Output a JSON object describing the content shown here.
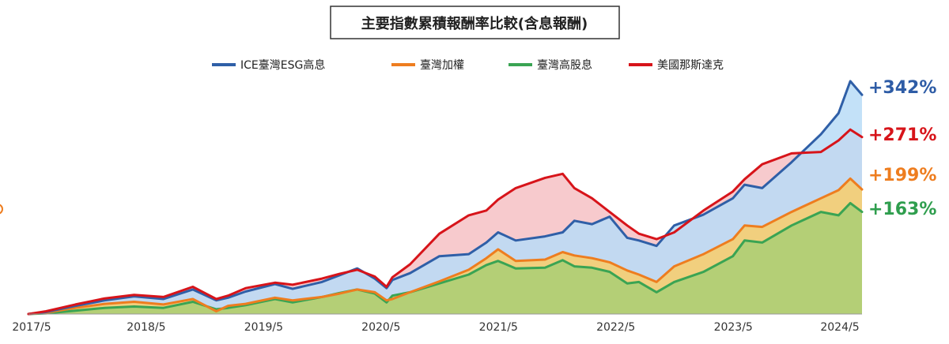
{
  "chart_data": {
    "type": "area",
    "title": "主要指數累積報酬率比較(含息報酬)",
    "xlabel": "",
    "ylabel": "",
    "x_ticks": [
      "2017/5",
      "2018/5",
      "2019/5",
      "2020/5",
      "2021/5",
      "2022/5",
      "2023/5",
      "2024/5"
    ],
    "x_range": [
      2017.35,
      2024.45
    ],
    "ylim": [
      0,
      350
    ],
    "grid": false,
    "legend": "top",
    "series": [
      {
        "name": "ICE臺灣ESG高息",
        "color": "#2f5fa7",
        "fill": "#b9dcf7",
        "end_label": "+342%",
        "points": [
          [
            2017.35,
            0
          ],
          [
            2017.5,
            3
          ],
          [
            2017.75,
            12
          ],
          [
            2018.0,
            20
          ],
          [
            2018.25,
            26
          ],
          [
            2018.5,
            22
          ],
          [
            2018.75,
            36
          ],
          [
            2018.95,
            20
          ],
          [
            2019.05,
            24
          ],
          [
            2019.2,
            33
          ],
          [
            2019.45,
            44
          ],
          [
            2019.6,
            37
          ],
          [
            2019.85,
            47
          ],
          [
            2020.0,
            57
          ],
          [
            2020.15,
            67
          ],
          [
            2020.3,
            52
          ],
          [
            2020.4,
            38
          ],
          [
            2020.45,
            50
          ],
          [
            2020.6,
            60
          ],
          [
            2020.85,
            85
          ],
          [
            2021.1,
            88
          ],
          [
            2021.25,
            105
          ],
          [
            2021.35,
            120
          ],
          [
            2021.5,
            108
          ],
          [
            2021.75,
            114
          ],
          [
            2021.9,
            120
          ],
          [
            2022.0,
            137
          ],
          [
            2022.15,
            132
          ],
          [
            2022.3,
            143
          ],
          [
            2022.45,
            112
          ],
          [
            2022.55,
            108
          ],
          [
            2022.7,
            100
          ],
          [
            2022.85,
            130
          ],
          [
            2023.1,
            146
          ],
          [
            2023.35,
            170
          ],
          [
            2023.45,
            190
          ],
          [
            2023.6,
            185
          ],
          [
            2023.85,
            223
          ],
          [
            2024.1,
            264
          ],
          [
            2024.25,
            295
          ],
          [
            2024.35,
            342
          ],
          [
            2024.45,
            322
          ]
        ]
      },
      {
        "name": "臺灣加權",
        "color": "#ee7d1f",
        "fill": "#f9cd6a",
        "end_label": "+199%",
        "points": [
          [
            2017.35,
            0
          ],
          [
            2017.5,
            2
          ],
          [
            2017.75,
            9
          ],
          [
            2018.0,
            15
          ],
          [
            2018.25,
            18
          ],
          [
            2018.5,
            14
          ],
          [
            2018.75,
            22
          ],
          [
            2018.95,
            4
          ],
          [
            2019.05,
            12
          ],
          [
            2019.2,
            15
          ],
          [
            2019.45,
            24
          ],
          [
            2019.6,
            20
          ],
          [
            2019.85,
            25
          ],
          [
            2020.0,
            30
          ],
          [
            2020.15,
            36
          ],
          [
            2020.3,
            32
          ],
          [
            2020.4,
            20
          ],
          [
            2020.45,
            22
          ],
          [
            2020.6,
            32
          ],
          [
            2020.85,
            48
          ],
          [
            2021.1,
            65
          ],
          [
            2021.25,
            82
          ],
          [
            2021.35,
            95
          ],
          [
            2021.5,
            78
          ],
          [
            2021.75,
            80
          ],
          [
            2021.9,
            91
          ],
          [
            2022.0,
            86
          ],
          [
            2022.15,
            82
          ],
          [
            2022.3,
            76
          ],
          [
            2022.45,
            64
          ],
          [
            2022.55,
            58
          ],
          [
            2022.7,
            47
          ],
          [
            2022.85,
            70
          ],
          [
            2023.1,
            88
          ],
          [
            2023.35,
            110
          ],
          [
            2023.45,
            130
          ],
          [
            2023.6,
            128
          ],
          [
            2023.85,
            150
          ],
          [
            2024.1,
            170
          ],
          [
            2024.25,
            182
          ],
          [
            2024.35,
            199
          ],
          [
            2024.45,
            183
          ]
        ]
      },
      {
        "name": "臺灣高股息",
        "color": "#3aa453",
        "fill": "#a9cf74",
        "end_label": "+163%",
        "points": [
          [
            2017.35,
            0
          ],
          [
            2017.5,
            1
          ],
          [
            2017.75,
            5
          ],
          [
            2018.0,
            9
          ],
          [
            2018.25,
            11
          ],
          [
            2018.5,
            9
          ],
          [
            2018.75,
            18
          ],
          [
            2018.95,
            7
          ],
          [
            2019.05,
            9
          ],
          [
            2019.2,
            13
          ],
          [
            2019.45,
            22
          ],
          [
            2019.6,
            17
          ],
          [
            2019.85,
            25
          ],
          [
            2020.0,
            31
          ],
          [
            2020.15,
            36
          ],
          [
            2020.3,
            30
          ],
          [
            2020.4,
            17
          ],
          [
            2020.45,
            27
          ],
          [
            2020.6,
            32
          ],
          [
            2020.85,
            45
          ],
          [
            2021.1,
            58
          ],
          [
            2021.25,
            72
          ],
          [
            2021.35,
            78
          ],
          [
            2021.5,
            67
          ],
          [
            2021.75,
            68
          ],
          [
            2021.9,
            79
          ],
          [
            2022.0,
            70
          ],
          [
            2022.15,
            68
          ],
          [
            2022.3,
            62
          ],
          [
            2022.45,
            45
          ],
          [
            2022.55,
            47
          ],
          [
            2022.7,
            32
          ],
          [
            2022.85,
            47
          ],
          [
            2023.1,
            62
          ],
          [
            2023.35,
            85
          ],
          [
            2023.45,
            108
          ],
          [
            2023.6,
            105
          ],
          [
            2023.85,
            130
          ],
          [
            2024.1,
            150
          ],
          [
            2024.25,
            145
          ],
          [
            2024.35,
            163
          ],
          [
            2024.45,
            150
          ]
        ]
      },
      {
        "name": "美國那斯達克",
        "color": "#d7141a",
        "fill": "#f6c1c4",
        "end_label": "+271%",
        "points": [
          [
            2017.35,
            0
          ],
          [
            2017.5,
            4
          ],
          [
            2017.75,
            14
          ],
          [
            2018.0,
            23
          ],
          [
            2018.25,
            28
          ],
          [
            2018.5,
            25
          ],
          [
            2018.75,
            40
          ],
          [
            2018.95,
            22
          ],
          [
            2019.05,
            27
          ],
          [
            2019.2,
            38
          ],
          [
            2019.45,
            46
          ],
          [
            2019.6,
            43
          ],
          [
            2019.85,
            52
          ],
          [
            2020.0,
            59
          ],
          [
            2020.15,
            65
          ],
          [
            2020.3,
            55
          ],
          [
            2020.4,
            40
          ],
          [
            2020.45,
            54
          ],
          [
            2020.6,
            73
          ],
          [
            2020.85,
            118
          ],
          [
            2021.1,
            145
          ],
          [
            2021.25,
            152
          ],
          [
            2021.35,
            168
          ],
          [
            2021.5,
            185
          ],
          [
            2021.75,
            200
          ],
          [
            2021.9,
            206
          ],
          [
            2022.0,
            185
          ],
          [
            2022.15,
            170
          ],
          [
            2022.3,
            150
          ],
          [
            2022.45,
            130
          ],
          [
            2022.55,
            118
          ],
          [
            2022.7,
            110
          ],
          [
            2022.85,
            120
          ],
          [
            2023.1,
            152
          ],
          [
            2023.35,
            180
          ],
          [
            2023.45,
            198
          ],
          [
            2023.6,
            220
          ],
          [
            2023.85,
            236
          ],
          [
            2024.1,
            238
          ],
          [
            2024.25,
            255
          ],
          [
            2024.35,
            271
          ],
          [
            2024.45,
            260
          ]
        ]
      }
    ]
  },
  "colors": {
    "blue_label": "#2e5ca6",
    "red_label": "#d7141a",
    "orange_label": "#ee7d1f",
    "green_label": "#2f9e4e"
  }
}
